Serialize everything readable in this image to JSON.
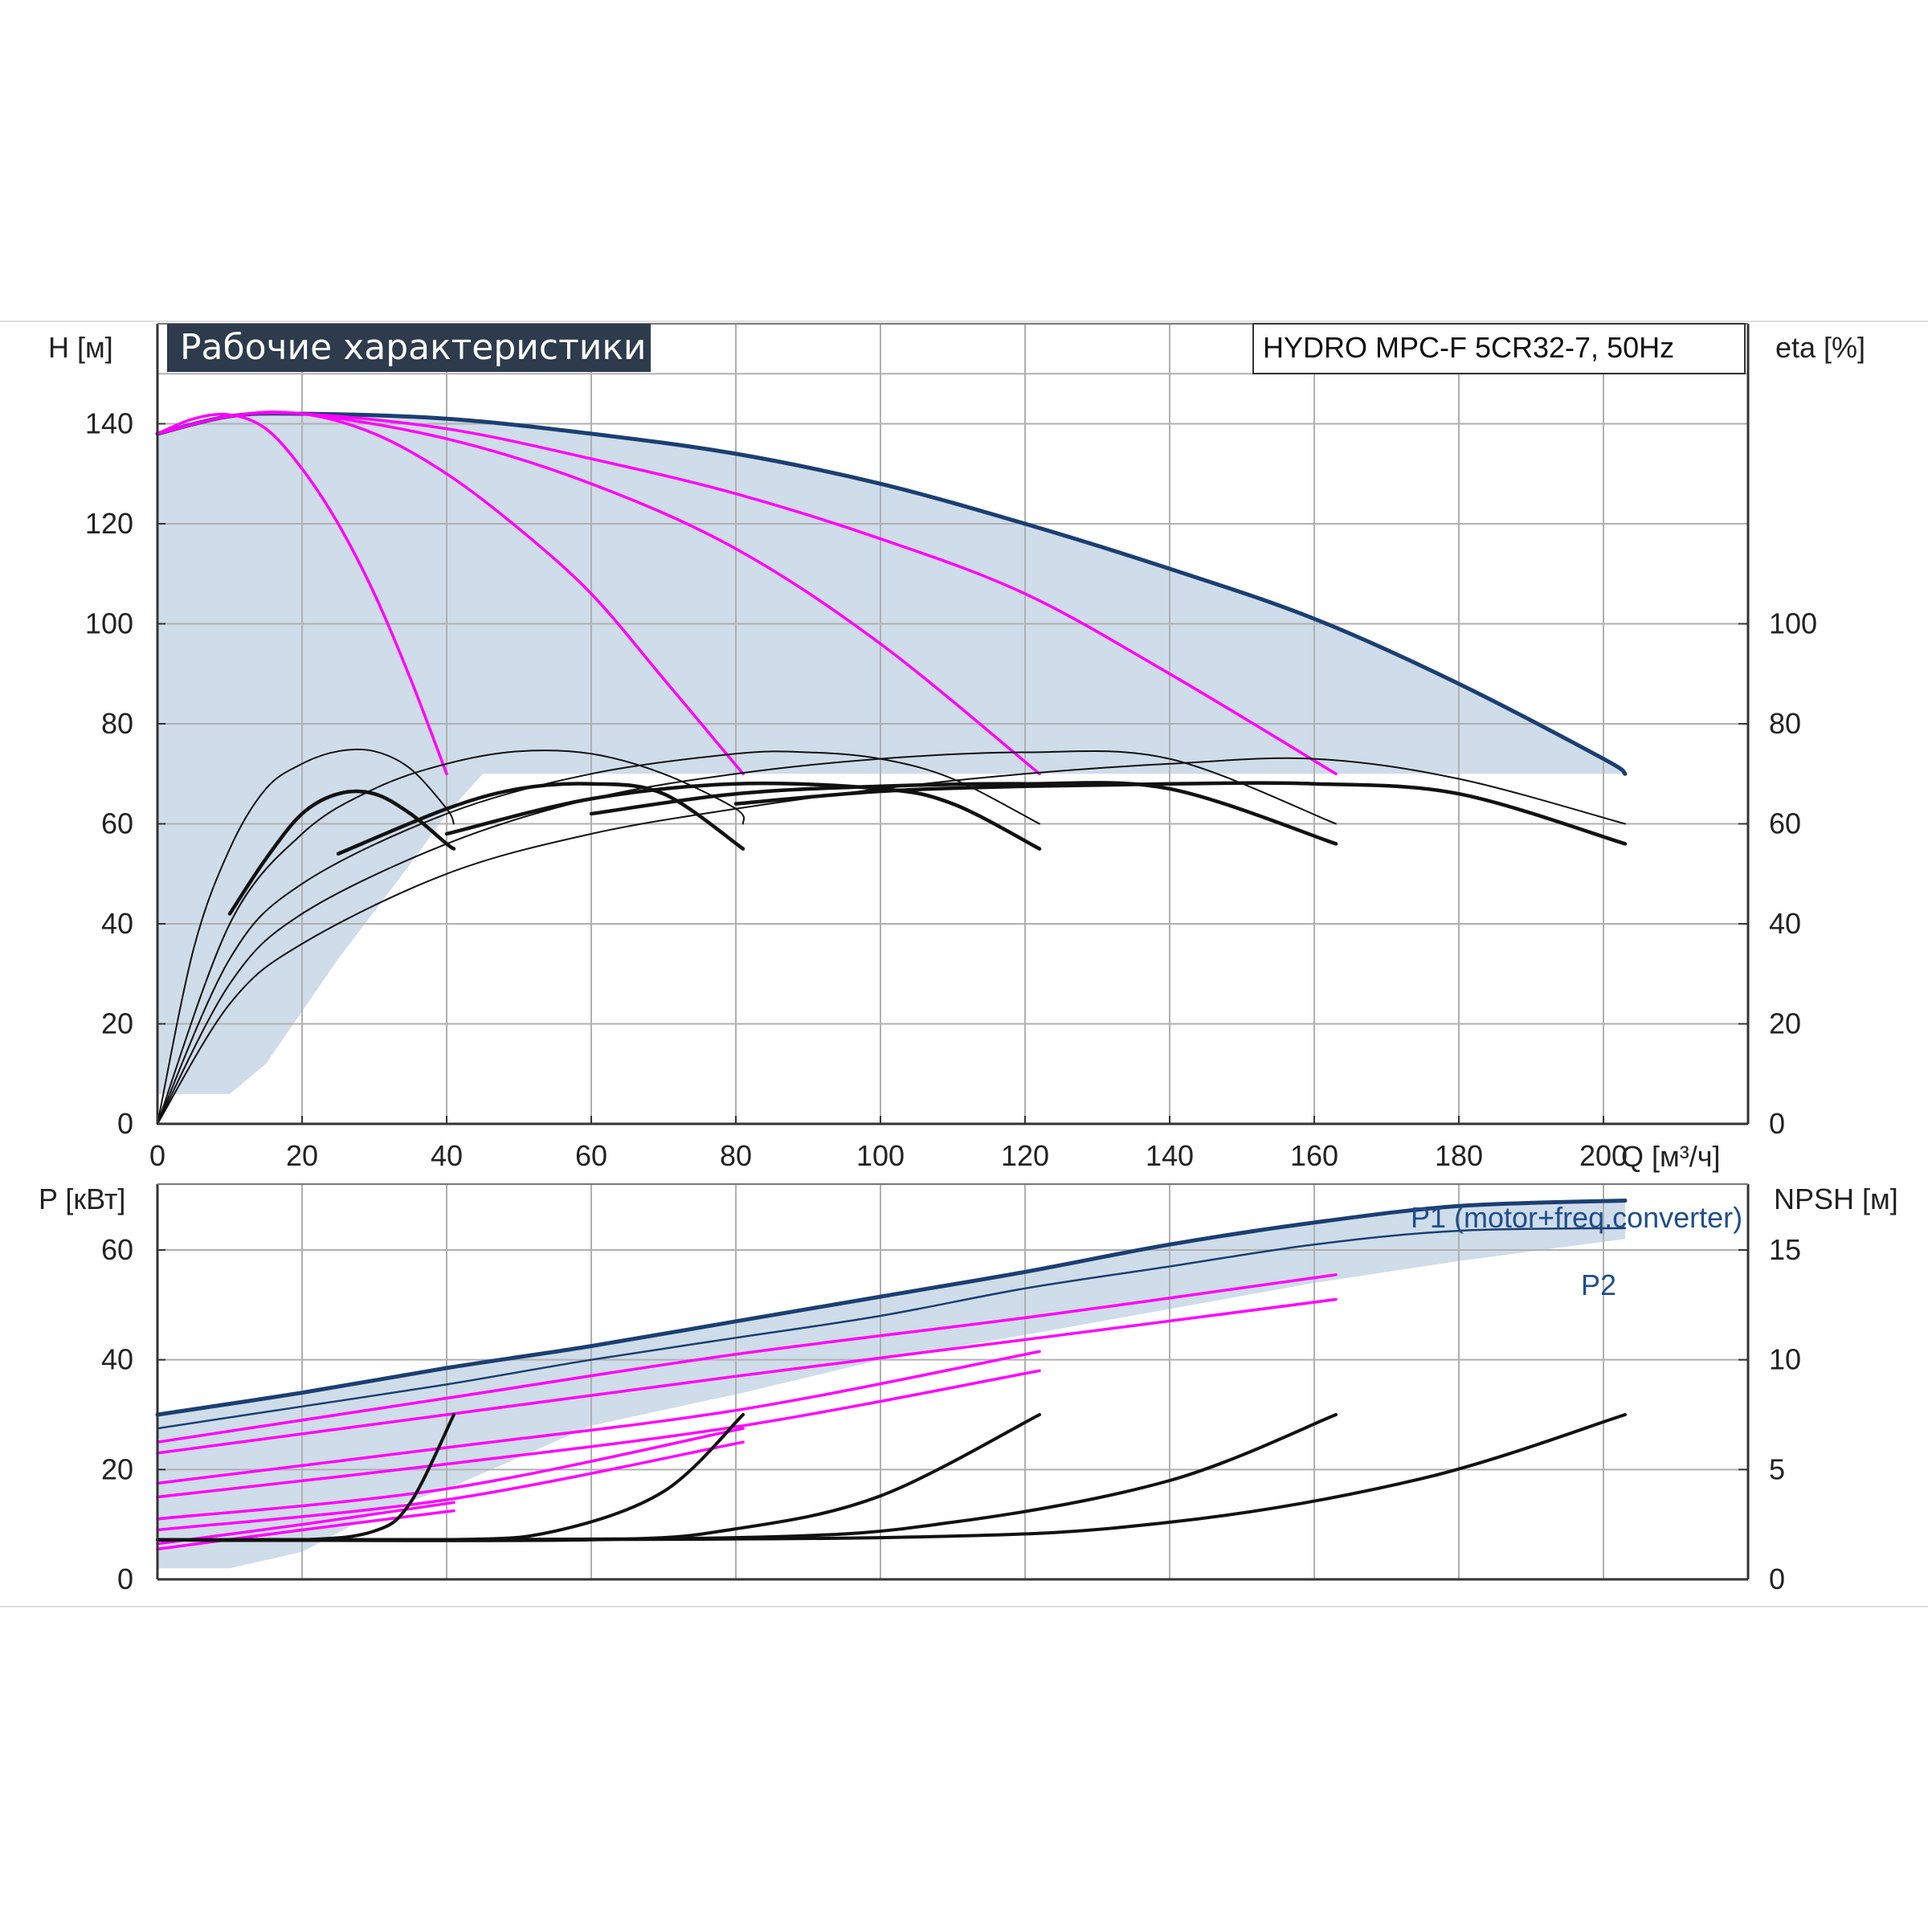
{
  "title": "Рабочие характеристики",
  "model": "HYDRO MPC-F 5CR32-7, 50Hz",
  "colors": {
    "system": "#1b3f72",
    "pump": "#ff00ff",
    "efficiency": "#111111",
    "area": "#cfdcea",
    "grid": "#b0b0b0",
    "title_bg": "#2d3b4d"
  },
  "chart_data": [
    {
      "id": "head-chart",
      "type": "line",
      "title": "Рабочие характеристики",
      "xlabel": "Q [м³/ч]",
      "ylabel": "H [м]",
      "ylabel_right": "eta [%]",
      "xlim": [
        0,
        220
      ],
      "ylim": [
        0,
        160
      ],
      "xticks": [
        0,
        20,
        40,
        60,
        80,
        100,
        120,
        140,
        160,
        180,
        200
      ],
      "yticks": [
        0,
        20,
        40,
        60,
        80,
        100,
        120,
        140
      ],
      "yticks_right": [
        0,
        20,
        40,
        60,
        80,
        100
      ],
      "grid": true,
      "series": [
        {
          "kind": "system",
          "points": [
            [
              0,
              138
            ],
            [
              10,
              141.5
            ],
            [
              20,
              142
            ],
            [
              40,
              141
            ],
            [
              60,
              138
            ],
            [
              80,
              134
            ],
            [
              100,
              128
            ],
            [
              120,
              120
            ],
            [
              140,
              111
            ],
            [
              160,
              101
            ],
            [
              180,
              88
            ],
            [
              200,
              73
            ],
            [
              203,
              70
            ]
          ]
        },
        {
          "kind": "pump",
          "points": [
            [
              0,
              138
            ],
            [
              5,
              141
            ],
            [
              10,
              141.8
            ],
            [
              15,
              139
            ],
            [
              20,
              131
            ],
            [
              25,
              120
            ],
            [
              30,
              106
            ],
            [
              35,
              89
            ],
            [
              40,
              70
            ]
          ]
        },
        {
          "kind": "pump",
          "points": [
            [
              0,
              138
            ],
            [
              10,
              141.5
            ],
            [
              20,
              142
            ],
            [
              30,
              138
            ],
            [
              40,
              130
            ],
            [
              50,
              119
            ],
            [
              60,
              106
            ],
            [
              70,
              89
            ],
            [
              81,
              70
            ]
          ]
        },
        {
          "kind": "pump",
          "points": [
            [
              0,
              138
            ],
            [
              10,
              141.5
            ],
            [
              20,
              142
            ],
            [
              40,
              137
            ],
            [
              60,
              128
            ],
            [
              80,
              115
            ],
            [
              100,
              96
            ],
            [
              122,
              70
            ]
          ]
        },
        {
          "kind": "pump",
          "points": [
            [
              0,
              138
            ],
            [
              10,
              141.5
            ],
            [
              20,
              142
            ],
            [
              40,
              139
            ],
            [
              60,
              133
            ],
            [
              80,
              126
            ],
            [
              100,
              117
            ],
            [
              120,
              106
            ],
            [
              140,
              90
            ],
            [
              163,
              70
            ]
          ]
        },
        {
          "kind": "efficiency",
          "points": [
            [
              0,
              0
            ],
            [
              5,
              35
            ],
            [
              10,
              55
            ],
            [
              15,
              67
            ],
            [
              20,
              72
            ],
            [
              25,
              74.5
            ],
            [
              30,
              74.5
            ],
            [
              35,
              71
            ],
            [
              40,
              63
            ],
            [
              41,
              60
            ]
          ]
        },
        {
          "kind": "efficiency",
          "points": [
            [
              0,
              0
            ],
            [
              10,
              40
            ],
            [
              20,
              58
            ],
            [
              30,
              67
            ],
            [
              40,
              72
            ],
            [
              50,
              74.5
            ],
            [
              60,
              74
            ],
            [
              70,
              70
            ],
            [
              80,
              63
            ],
            [
              81,
              60
            ]
          ]
        },
        {
          "kind": "efficiency",
          "points": [
            [
              0,
              0
            ],
            [
              10,
              33
            ],
            [
              20,
              48
            ],
            [
              40,
              62
            ],
            [
              60,
              70
            ],
            [
              80,
              74
            ],
            [
              90,
              74.3
            ],
            [
              100,
              73
            ],
            [
              110,
              69
            ],
            [
              122,
              60
            ]
          ]
        },
        {
          "kind": "efficiency",
          "points": [
            [
              0,
              0
            ],
            [
              10,
              28
            ],
            [
              20,
              42
            ],
            [
              40,
              56
            ],
            [
              60,
              65
            ],
            [
              80,
              70
            ],
            [
              100,
              73
            ],
            [
              120,
              74.3
            ],
            [
              140,
              73
            ],
            [
              163,
              60
            ]
          ]
        },
        {
          "kind": "efficiency",
          "points": [
            [
              0,
              0
            ],
            [
              10,
              24
            ],
            [
              20,
              36
            ],
            [
              40,
              50
            ],
            [
              60,
              58
            ],
            [
              80,
              63
            ],
            [
              100,
              67
            ],
            [
              120,
              70
            ],
            [
              140,
              72
            ],
            [
              160,
              73
            ],
            [
              180,
              69
            ],
            [
              203,
              60
            ]
          ]
        },
        {
          "kind": "efficiency-bold",
          "points": [
            [
              10,
              42
            ],
            [
              15,
              53
            ],
            [
              20,
              62
            ],
            [
              25,
              66
            ],
            [
              30,
              66
            ],
            [
              35,
              62
            ],
            [
              40,
              56
            ],
            [
              41,
              55
            ]
          ]
        },
        {
          "kind": "efficiency-bold",
          "points": [
            [
              25,
              54
            ],
            [
              40,
              63
            ],
            [
              50,
              67
            ],
            [
              60,
              68
            ],
            [
              70,
              66
            ],
            [
              81,
              55
            ]
          ]
        },
        {
          "kind": "efficiency-bold",
          "points": [
            [
              40,
              58
            ],
            [
              60,
              65
            ],
            [
              80,
              68
            ],
            [
              100,
              67
            ],
            [
              110,
              64
            ],
            [
              122,
              55
            ]
          ]
        },
        {
          "kind": "efficiency-bold",
          "points": [
            [
              60,
              62
            ],
            [
              80,
              66
            ],
            [
              100,
              67.5
            ],
            [
              120,
              68
            ],
            [
              140,
              67
            ],
            [
              163,
              56
            ]
          ]
        },
        {
          "kind": "efficiency-bold",
          "points": [
            [
              80,
              64
            ],
            [
              100,
              66.5
            ],
            [
              120,
              67.5
            ],
            [
              140,
              68
            ],
            [
              160,
              68
            ],
            [
              180,
              66
            ],
            [
              203,
              56
            ]
          ]
        }
      ]
    },
    {
      "id": "power-chart",
      "type": "line",
      "xlabel": "",
      "ylabel": "P [кВт]",
      "ylabel_right": "NPSH [м]",
      "xlim": [
        0,
        220
      ],
      "ylim": [
        0,
        72
      ],
      "yticks": [
        0,
        20,
        40,
        60
      ],
      "yticks_right_values": [
        0,
        5,
        10,
        15
      ],
      "grid": true,
      "legend": [
        "P1 (motor+freq.converter)",
        "P2"
      ],
      "series": [
        {
          "name": "P1 (motor+freq.converter)",
          "kind": "system",
          "points": [
            [
              0,
              30
            ],
            [
              20,
              34
            ],
            [
              40,
              38.5
            ],
            [
              60,
              42.5
            ],
            [
              80,
              47
            ],
            [
              100,
              51.5
            ],
            [
              120,
              56
            ],
            [
              140,
              61
            ],
            [
              160,
              65
            ],
            [
              180,
              68
            ],
            [
              203,
              69
            ]
          ]
        },
        {
          "name": "P2",
          "kind": "system-thin",
          "points": [
            [
              0,
              27.5
            ],
            [
              20,
              31.5
            ],
            [
              40,
              35.5
            ],
            [
              60,
              40
            ],
            [
              80,
              44
            ],
            [
              100,
              48
            ],
            [
              120,
              53
            ],
            [
              140,
              57
            ],
            [
              160,
              61
            ],
            [
              180,
              63.5
            ],
            [
              203,
              64
            ]
          ]
        },
        {
          "kind": "pump",
          "points": [
            [
              0,
              25
            ],
            [
              40,
              33
            ],
            [
              80,
              41
            ],
            [
              122,
              48
            ],
            [
              163,
              55.5
            ]
          ]
        },
        {
          "kind": "pump",
          "points": [
            [
              0,
              23
            ],
            [
              40,
              30
            ],
            [
              80,
              37
            ],
            [
              122,
              44
            ],
            [
              163,
              51
            ]
          ]
        },
        {
          "kind": "pump",
          "points": [
            [
              0,
              17.5
            ],
            [
              40,
              24
            ],
            [
              81,
              31
            ],
            [
              122,
              41.5
            ]
          ]
        },
        {
          "kind": "pump",
          "points": [
            [
              0,
              15
            ],
            [
              40,
              21
            ],
            [
              81,
              28
            ],
            [
              122,
              38
            ]
          ]
        },
        {
          "kind": "pump",
          "points": [
            [
              0,
              11
            ],
            [
              40,
              16.5
            ],
            [
              81,
              27.5
            ]
          ]
        },
        {
          "kind": "pump",
          "points": [
            [
              0,
              9
            ],
            [
              40,
              14.5
            ],
            [
              81,
              25
            ]
          ]
        },
        {
          "kind": "pump",
          "points": [
            [
              0,
              6.5
            ],
            [
              20,
              10
            ],
            [
              41,
              14
            ]
          ]
        },
        {
          "kind": "pump",
          "points": [
            [
              0,
              5.5
            ],
            [
              20,
              9
            ],
            [
              41,
              12.5
            ]
          ]
        },
        {
          "kind": "npsh",
          "points": [
            [
              0,
              1.8
            ],
            [
              20,
              1.8
            ],
            [
              30,
              2.2
            ],
            [
              35,
              3.5
            ],
            [
              41,
              7.5
            ]
          ]
        },
        {
          "kind": "npsh",
          "points": [
            [
              0,
              1.8
            ],
            [
              40,
              1.8
            ],
            [
              55,
              2.2
            ],
            [
              70,
              4
            ],
            [
              81,
              7.5
            ]
          ]
        },
        {
          "kind": "npsh",
          "points": [
            [
              0,
              1.8
            ],
            [
              60,
              1.8
            ],
            [
              80,
              2.3
            ],
            [
              100,
              3.8
            ],
            [
              122,
              7.5
            ]
          ]
        },
        {
          "kind": "npsh",
          "points": [
            [
              0,
              1.8
            ],
            [
              80,
              1.9
            ],
            [
              110,
              2.6
            ],
            [
              140,
              4.5
            ],
            [
              163,
              7.5
            ]
          ]
        },
        {
          "kind": "npsh",
          "points": [
            [
              0,
              1.8
            ],
            [
              100,
              1.9
            ],
            [
              140,
              2.6
            ],
            [
              175,
              4.6
            ],
            [
              203,
              7.5
            ]
          ]
        }
      ]
    }
  ]
}
